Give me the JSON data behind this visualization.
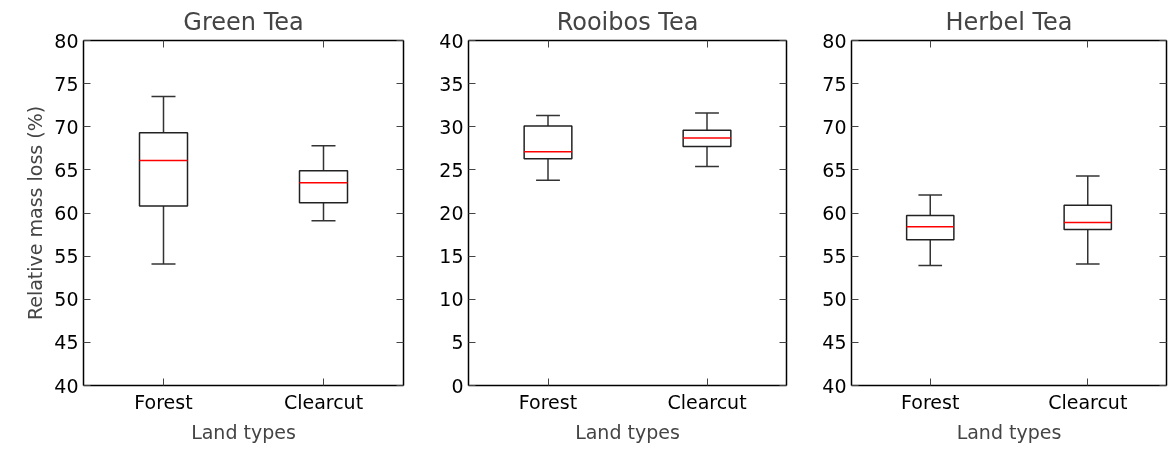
{
  "chart_data": [
    {
      "type": "box",
      "title": "Green Tea",
      "xlabel": "Land types",
      "ylabel": "Relative mass loss (%)",
      "categories": [
        "Forest",
        "Clearcut"
      ],
      "boxes": [
        {
          "low": 54.1,
          "q1": 60.8,
          "median": 66.1,
          "q3": 69.3,
          "high": 73.5
        },
        {
          "low": 59.1,
          "q1": 61.2,
          "median": 63.5,
          "q3": 64.9,
          "high": 67.8
        }
      ],
      "ylim": [
        40,
        80
      ],
      "yticks": [
        40,
        45,
        50,
        55,
        60,
        65,
        70,
        75,
        80
      ],
      "grid": false
    },
    {
      "type": "box",
      "title": "Rooibos Tea",
      "xlabel": "Land types",
      "categories": [
        "Forest",
        "Clearcut"
      ],
      "boxes": [
        {
          "low": 23.8,
          "q1": 26.3,
          "median": 27.1,
          "q3": 30.1,
          "high": 31.3
        },
        {
          "low": 25.4,
          "q1": 27.7,
          "median": 28.7,
          "q3": 29.6,
          "high": 31.6
        }
      ],
      "ylim": [
        0,
        40
      ],
      "yticks": [
        0,
        5,
        10,
        15,
        20,
        25,
        30,
        35,
        40
      ],
      "grid": false
    },
    {
      "type": "box",
      "title": "Herbel Tea",
      "xlabel": "Land types",
      "categories": [
        "Forest",
        "Clearcut"
      ],
      "boxes": [
        {
          "low": 53.9,
          "q1": 56.9,
          "median": 58.4,
          "q3": 59.7,
          "high": 62.1
        },
        {
          "low": 54.1,
          "q1": 58.1,
          "median": 58.9,
          "q3": 60.9,
          "high": 64.3
        }
      ],
      "ylim": [
        40,
        80
      ],
      "yticks": [
        40,
        45,
        50,
        55,
        60,
        65,
        70,
        75,
        80
      ],
      "grid": false
    }
  ]
}
